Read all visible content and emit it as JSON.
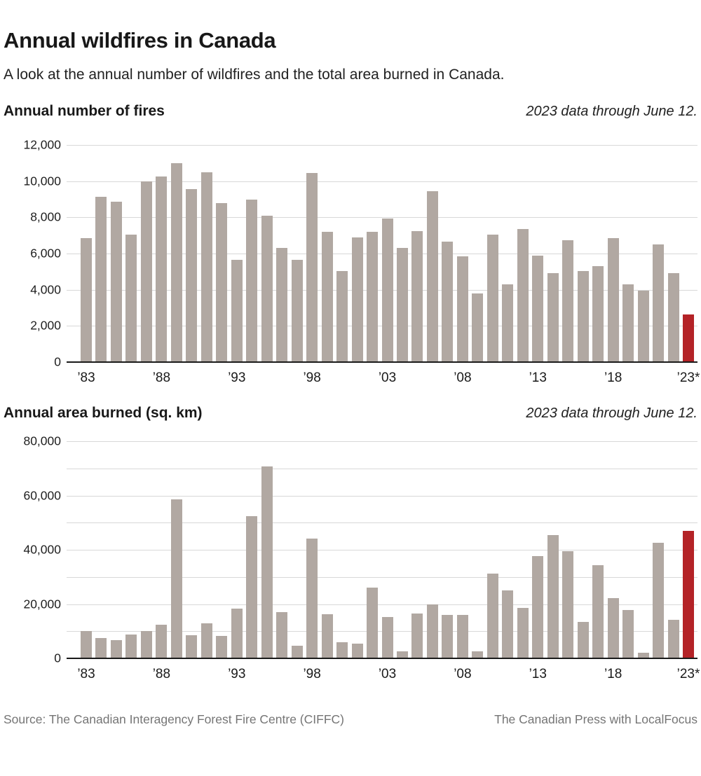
{
  "page": {
    "title": "Annual wildfires in Canada",
    "subtitle": "A look at the annual number of wildfires and the total area burned in Canada.",
    "footer": {
      "source": "Source: The Canadian Interagency Forest Fire Centre (CIFFC)",
      "credit": "The Canadian Press with LocalFocus"
    }
  },
  "colors": {
    "bar": "#b1a8a2",
    "bar_highlight": "#b42327",
    "gridline": "#d8d8d8",
    "axis_line": "#1a1a1a",
    "footer_text": "#757575"
  },
  "chart_data": [
    {
      "type": "bar",
      "title": "Annual number of fires",
      "note": "2023 data through June 12.",
      "xlabel": "",
      "ylabel": "Number of fires",
      "ylim": [
        0,
        12000
      ],
      "gridline_step": 2000,
      "legend": "none",
      "highlight_year": 2023,
      "highlight_meaning": "2023 partial-year data (through June 12)",
      "years": [
        1983,
        1984,
        1985,
        1986,
        1987,
        1988,
        1989,
        1990,
        1991,
        1992,
        1993,
        1994,
        1995,
        1996,
        1997,
        1998,
        1999,
        2000,
        2001,
        2002,
        2003,
        2004,
        2005,
        2006,
        2007,
        2008,
        2009,
        2010,
        2011,
        2012,
        2013,
        2014,
        2015,
        2016,
        2017,
        2018,
        2019,
        2020,
        2021,
        2022,
        2023
      ],
      "values": [
        6850,
        9150,
        8850,
        7050,
        10000,
        10250,
        11000,
        9550,
        10500,
        8800,
        5650,
        9000,
        8100,
        6300,
        5650,
        10450,
        7200,
        5050,
        6900,
        7200,
        7950,
        6300,
        7250,
        9450,
        6650,
        5850,
        3800,
        7050,
        4300,
        7350,
        5900,
        4900,
        6750,
        5050,
        5300,
        6850,
        4300,
        3950,
        6500,
        4900,
        2620
      ],
      "y_ticks": [
        {
          "value": 0,
          "label": "0"
        },
        {
          "value": 2000,
          "label": "2,000"
        },
        {
          "value": 4000,
          "label": "4,000"
        },
        {
          "value": 6000,
          "label": "6,000"
        },
        {
          "value": 8000,
          "label": "8,000"
        },
        {
          "value": 10000,
          "label": "10,000"
        },
        {
          "value": 12000,
          "label": "12,000"
        }
      ],
      "x_ticks": [
        {
          "index": 0,
          "label": "’83"
        },
        {
          "index": 5,
          "label": "’88"
        },
        {
          "index": 10,
          "label": "’93"
        },
        {
          "index": 15,
          "label": "’98"
        },
        {
          "index": 20,
          "label": "’03"
        },
        {
          "index": 25,
          "label": "’08"
        },
        {
          "index": 30,
          "label": "’13"
        },
        {
          "index": 35,
          "label": "’18"
        },
        {
          "index": 40,
          "label": "’23*"
        }
      ]
    },
    {
      "type": "bar",
      "title": "Annual area burned (sq. km)",
      "note": "2023 data through June 12.",
      "xlabel": "",
      "ylabel": "Area burned (sq. km)",
      "ylim": [
        0,
        80000
      ],
      "gridline_step": 10000,
      "legend": "none",
      "highlight_year": 2023,
      "highlight_meaning": "2023 partial-year data (through June 12)",
      "years": [
        1983,
        1984,
        1985,
        1986,
        1987,
        1988,
        1989,
        1990,
        1991,
        1992,
        1993,
        1994,
        1995,
        1996,
        1997,
        1998,
        1999,
        2000,
        2001,
        2002,
        2003,
        2004,
        2005,
        2006,
        2007,
        2008,
        2009,
        2010,
        2011,
        2012,
        2013,
        2014,
        2015,
        2016,
        2017,
        2018,
        2019,
        2020,
        2021,
        2022,
        2023
      ],
      "values": [
        10100,
        7600,
        6700,
        8900,
        10100,
        12400,
        58500,
        8600,
        12800,
        8300,
        18200,
        52300,
        70800,
        17100,
        4700,
        44200,
        16200,
        5900,
        5500,
        26000,
        15200,
        2500,
        16600,
        19800,
        16000,
        15900,
        2700,
        31200,
        25100,
        18700,
        37600,
        45500,
        39500,
        13400,
        34200,
        22300,
        17900,
        2100,
        42500,
        14300,
        47000
      ],
      "y_ticks": [
        {
          "value": 0,
          "label": "0"
        },
        {
          "value": 20000,
          "label": "20,000"
        },
        {
          "value": 40000,
          "label": "40,000"
        },
        {
          "value": 60000,
          "label": "60,000"
        },
        {
          "value": 80000,
          "label": "80,000"
        }
      ],
      "x_ticks": [
        {
          "index": 0,
          "label": "’83"
        },
        {
          "index": 5,
          "label": "’88"
        },
        {
          "index": 10,
          "label": "’93"
        },
        {
          "index": 15,
          "label": "’98"
        },
        {
          "index": 20,
          "label": "’03"
        },
        {
          "index": 25,
          "label": "’08"
        },
        {
          "index": 30,
          "label": "’13"
        },
        {
          "index": 35,
          "label": "’18"
        },
        {
          "index": 40,
          "label": "’23*"
        }
      ]
    }
  ]
}
